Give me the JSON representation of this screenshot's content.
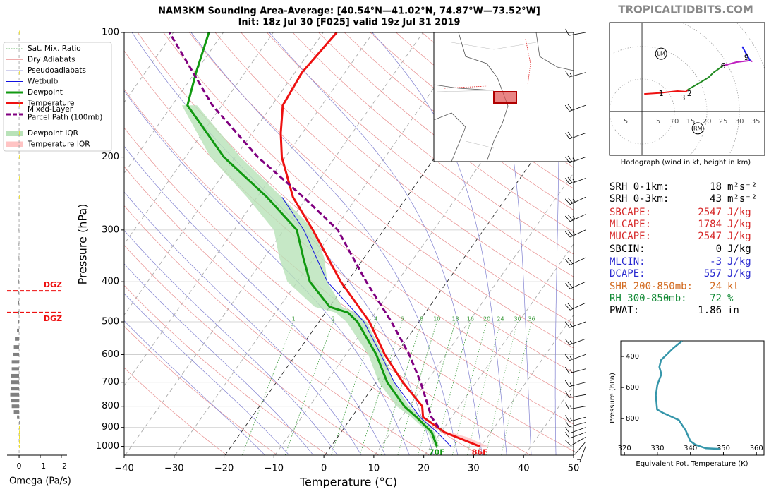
{
  "site": "TROPICALTIDBITS.COM",
  "chart_data": [
    {
      "type": "skewt",
      "title": "NAM3KM Sounding Area-Average: [40.54°N—41.02°N, 74.87°W—73.52°W]",
      "subtitle": "Init: 18z Jul 30 [F025] valid 19z Jul 31 2019",
      "x_label": "Temperature (°C)",
      "y_label": "Pressure (hPa)",
      "xlim": [
        -40,
        50
      ],
      "xticks": [
        {
          "value": -40,
          "label": "−40"
        },
        {
          "value": -30,
          "label": "−30"
        },
        {
          "value": -20,
          "label": "−20"
        },
        {
          "value": -10,
          "label": "−10"
        },
        0,
        10,
        20,
        30,
        40,
        50
      ],
      "ylim": [
        1050,
        100
      ],
      "yticks": [
        100,
        200,
        300,
        400,
        500,
        600,
        700,
        800,
        900,
        1000
      ],
      "log_y": true,
      "grid": true,
      "reference_lines": [
        {
          "name": "Sat. Mix. Ratio",
          "color": "#3a9a3a",
          "values": [
            1,
            2,
            4,
            6,
            8,
            10,
            13,
            16,
            20,
            24,
            30,
            36
          ]
        },
        {
          "name": "Dry Adiabats",
          "color": "#e89090"
        },
        {
          "name": "Pseudoadiabats",
          "color": "#8080d0"
        }
      ],
      "series": [
        {
          "name": "Wetbulb",
          "color": "#1010e0",
          "width": 1,
          "pressure": [
            1000,
            925,
            850,
            700,
            600,
            500,
            400,
            300,
            250
          ],
          "values": [
            24,
            19.3,
            13.7,
            3.6,
            -3,
            -11,
            -24,
            -36,
            -45
          ]
        },
        {
          "name": "Dewpoint",
          "color": "#119911",
          "width": 3,
          "surface_label": "70F",
          "pressure": [
            1000,
            925,
            850,
            800,
            700,
            600,
            500,
            475,
            460,
            400,
            350,
            300,
            250,
            200,
            150,
            125,
            100
          ],
          "values": [
            21.2,
            18.2,
            13,
            9,
            2.2,
            -3.9,
            -12.3,
            -15.5,
            -20,
            -27.5,
            -32.2,
            -37.4,
            -48,
            -62.3,
            -76.9,
            -79.8,
            -82.9
          ]
        },
        {
          "name": "Temperature",
          "color": "#ee1111",
          "width": 3,
          "surface_label": "86F",
          "pressure": [
            1000,
            925,
            850,
            800,
            700,
            600,
            500,
            400,
            300,
            250,
            200,
            175,
            150,
            125,
            100
          ],
          "values": [
            29.8,
            20.8,
            14.3,
            12.6,
            5.3,
            -2.2,
            -9.9,
            -21.3,
            -34.2,
            -42.8,
            -50.7,
            -54.3,
            -57.8,
            -58.6,
            -57.3
          ]
        },
        {
          "name": "Mixed-Layer\nParcel Path (100mb)",
          "color": "#800080",
          "width": 3,
          "dashed": true,
          "pressure": [
            900,
            850,
            700,
            600,
            500,
            400,
            300,
            250,
            200,
            150,
            100
          ],
          "values": [
            18.9,
            16,
            8.9,
            2.7,
            -5.5,
            -16.2,
            -29.2,
            -40.7,
            -55.5,
            -71.9,
            -90.8
          ]
        }
      ],
      "bands": [
        {
          "name": "Dewpoint IQR",
          "color": "#b8e2b8",
          "pressure": [
            1000,
            925,
            850,
            800,
            700,
            600,
            500,
            475,
            460,
            400,
            350,
            300,
            250,
            200,
            150
          ],
          "low": [
            20.8,
            17.5,
            12,
            7.5,
            0.5,
            -5.5,
            -14.5,
            -18,
            -23,
            -32,
            -37,
            -42,
            -52,
            -65,
            -78
          ],
          "high": [
            21.6,
            18.8,
            14,
            10,
            3.5,
            -2.5,
            -10.5,
            -14,
            -17.5,
            -24,
            -28,
            -34,
            -45,
            -59,
            -75
          ]
        },
        {
          "name": "Temperature IQR",
          "color": "#ffc4c4",
          "pressure": [
            1000,
            950,
            925
          ],
          "low": [
            29,
            24,
            20
          ],
          "high": [
            31.5,
            26,
            22
          ]
        }
      ],
      "winds": {
        "pressure": [
          1000,
          975,
          950,
          925,
          900,
          875,
          850,
          800,
          750,
          700,
          650,
          600,
          550,
          500,
          450,
          400,
          350,
          300,
          275,
          250,
          225,
          200,
          175,
          150,
          125,
          100
        ],
        "speed": [
          5,
          5,
          10,
          10,
          10,
          10,
          15,
          15,
          15,
          15,
          15,
          15,
          15,
          15,
          20,
          20,
          20,
          25,
          25,
          25,
          25,
          25,
          20,
          20,
          15,
          10
        ],
        "direction": [
          200,
          220,
          240,
          250,
          250,
          255,
          255,
          260,
          260,
          255,
          255,
          250,
          250,
          250,
          245,
          245,
          245,
          245,
          245,
          245,
          250,
          250,
          250,
          250,
          255,
          260
        ]
      }
    },
    {
      "type": "omega-bar",
      "x_label": "Omega (Pa/s)",
      "xlim": [
        0.57,
        -2.27
      ],
      "xticks": [
        0,
        {
          "value": -1,
          "label": "−1"
        },
        {
          "value": -2,
          "label": "−2"
        }
      ],
      "positive_color": "#808080",
      "negative_color": "#f0e020",
      "pressure": [
        100,
        125,
        150,
        175,
        200,
        225,
        250,
        275,
        300,
        325,
        350,
        375,
        400,
        425,
        450,
        475,
        500,
        525,
        550,
        575,
        600,
        625,
        650,
        675,
        700,
        725,
        750,
        775,
        800,
        825,
        850,
        875,
        900,
        925,
        950,
        975,
        1000
      ],
      "values": [
        -0.02,
        -0.02,
        -0.02,
        -0.02,
        -0.02,
        -0.02,
        -0.02,
        0.02,
        0.02,
        0.02,
        0.02,
        0.03,
        0.03,
        0.03,
        0.04,
        0.05,
        0.05,
        0.1,
        0.2,
        0.25,
        0.3,
        0.35,
        0.35,
        0.4,
        0.4,
        0.4,
        0.42,
        0.4,
        0.35,
        0.25,
        0.1,
        0,
        -0.05,
        -0.05,
        -0.05,
        -0.04,
        -0.03
      ],
      "annotations": [
        {
          "text": "DGZ",
          "pressure": 421,
          "color": "#ee1111"
        },
        {
          "text": "DGZ",
          "pressure": 475,
          "color": "#ee1111"
        }
      ]
    },
    {
      "type": "hodograph",
      "title": "Hodograph (wind in kt, height in km)",
      "xlim": [
        -10,
        37.8
      ],
      "ylim": [
        -13.5,
        27.4
      ],
      "xticks": [
        {
          "value": -5,
          "label": "5"
        },
        5,
        10,
        15,
        20,
        25,
        30,
        35
      ],
      "segments": [
        {
          "color": "#ee1111",
          "u": [
            0.7,
            5.4,
            10.9,
            13.5,
            14.1
          ],
          "v": [
            5.4,
            5.7,
            6.3,
            6.1,
            6.7
          ]
        },
        {
          "color": "#228b22",
          "u": [
            14.1,
            18,
            20.5,
            22,
            25
          ],
          "v": [
            6.7,
            9,
            10.5,
            12,
            14.1
          ]
        },
        {
          "color": "#c020c0",
          "u": [
            25,
            29,
            33.3,
            34
          ],
          "v": [
            14.1,
            15.2,
            15.7,
            15.4
          ]
        },
        {
          "color": "#2020ee",
          "u": [
            33.3,
            32,
            30.9
          ],
          "v": [
            15.7,
            18,
            20
          ]
        }
      ],
      "heights": [
        {
          "km": 1,
          "u": 5.9,
          "v": 5.4
        },
        {
          "km": 2,
          "u": 14.6,
          "v": 5.4
        },
        {
          "km": 3,
          "u": 12.6,
          "v": 4.1
        },
        {
          "km": 6,
          "u": 25,
          "v": 13.9
        },
        {
          "km": 9,
          "u": 32.2,
          "v": 16.5
        }
      ],
      "storm_motion": [
        {
          "label": "LM",
          "u": 5.9,
          "v": 17.8
        },
        {
          "label": "RM",
          "u": 17.2,
          "v": -5.2
        }
      ]
    },
    {
      "type": "line",
      "x_label": "Equivalent Pot. Temperature (K)",
      "y_label": "Pressure (hPa)",
      "xlim": [
        318.9,
        362.3
      ],
      "xticks": [
        320,
        330,
        340,
        350,
        360
      ],
      "ylim": [
        1035,
        300
      ],
      "yticks": [
        400,
        600,
        800
      ],
      "color": "#3596aa",
      "pressure": [
        300,
        345,
        423,
        468,
        514,
        582,
        650,
        741,
        764,
        809,
        877,
        945,
        968,
        991,
        995
      ],
      "values": [
        337.5,
        334.9,
        331.1,
        330.6,
        331.2,
        330,
        329.5,
        329.9,
        331.8,
        336.5,
        338.6,
        340,
        341.5,
        344.7,
        349
      ]
    }
  ],
  "indices": [
    {
      "label": "SRH 0-1km:",
      "value": 18,
      "unit": "m²s⁻²",
      "color": "#000000"
    },
    {
      "label": "SRH 0-3km:",
      "value": 43,
      "unit": "m²s⁻²",
      "color": "#000000"
    },
    {
      "label": "SBCAPE:",
      "value": 2547,
      "unit": "J/kg",
      "color": "#d62728"
    },
    {
      "label": "MLCAPE:",
      "value": 1784,
      "unit": "J/kg",
      "color": "#d62728"
    },
    {
      "label": "MUCAPE:",
      "value": 2547,
      "unit": "J/kg",
      "color": "#d62728"
    },
    {
      "label": "SBCIN:",
      "value": 0,
      "unit": "J/kg",
      "color": "#000000"
    },
    {
      "label": "MLCIN:",
      "value": -3,
      "unit": "J/kg",
      "color": "#2a2ad0"
    },
    {
      "label": "DCAPE:",
      "value": 557,
      "unit": "J/kg",
      "color": "#2a2ad0"
    },
    {
      "label": "SHR 200-850mb:",
      "value": 24,
      "unit": "kt",
      "color": "#d2691e"
    },
    {
      "label": "RH 300-850mb:",
      "value": 72,
      "unit": "%",
      "color": "#138a36"
    },
    {
      "label": "PWAT:",
      "value": 1.86,
      "unit": "in",
      "color": "#000000"
    }
  ]
}
